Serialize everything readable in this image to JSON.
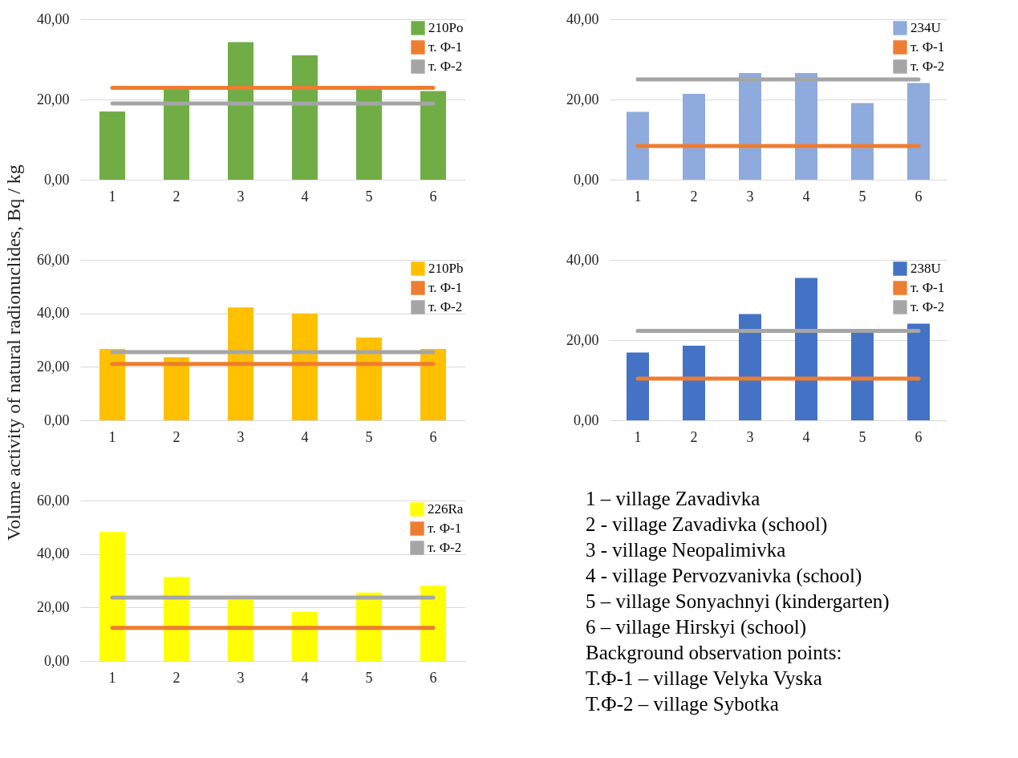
{
  "chart_data": [
    {
      "type": "bar",
      "categories": [
        "1",
        "2",
        "3",
        "4",
        "5",
        "6"
      ],
      "series": [
        {
          "name": "210Po",
          "color": "#70ad47",
          "values": [
            17.0,
            22.4,
            34.3,
            31.0,
            22.4,
            22.1
          ]
        },
        {
          "name": "т. Ф-1",
          "type": "line",
          "color": "#ed7d31",
          "values": [
            22.9,
            22.9,
            22.9,
            22.9,
            22.9,
            22.9
          ]
        },
        {
          "name": "т. Ф-2",
          "type": "line",
          "color": "#a5a5a5",
          "values": [
            19.0,
            19.0,
            19.0,
            19.0,
            19.0,
            19.0
          ]
        }
      ],
      "ylim": [
        0,
        40
      ],
      "yticks": [
        {
          "value": 0,
          "label": "0,00"
        },
        {
          "value": 20,
          "label": "20,00"
        },
        {
          "value": 40,
          "label": "40,00"
        }
      ],
      "grid": "y",
      "legend": "top right"
    },
    {
      "type": "bar",
      "categories": [
        "1",
        "2",
        "3",
        "4",
        "5",
        "6"
      ],
      "series": [
        {
          "name": "234U",
          "color": "#8faadc",
          "values": [
            16.9,
            21.4,
            26.6,
            26.6,
            19.1,
            24.1
          ]
        },
        {
          "name": "т. Ф-1",
          "type": "line",
          "color": "#ed7d31",
          "values": [
            8.4,
            8.4,
            8.4,
            8.4,
            8.4,
            8.4
          ]
        },
        {
          "name": "т. Ф-2",
          "type": "line",
          "color": "#a5a5a5",
          "values": [
            25.0,
            25.0,
            25.0,
            25.0,
            25.0,
            25.0
          ]
        }
      ],
      "ylim": [
        0,
        40
      ],
      "yticks": [
        {
          "value": 0,
          "label": "0,00"
        },
        {
          "value": 20,
          "label": "20,00"
        },
        {
          "value": 40,
          "label": "40,00"
        }
      ],
      "grid": "y",
      "legend": "top right"
    },
    {
      "type": "bar",
      "categories": [
        "1",
        "2",
        "3",
        "4",
        "5",
        "6"
      ],
      "ylabel": "Volume activity of natural radionuclides, Bq / kg",
      "series": [
        {
          "name": "210Pb",
          "color": "#ffc000",
          "values": [
            26.7,
            23.6,
            42.2,
            40.0,
            31.0,
            26.7
          ]
        },
        {
          "name": "т. Ф-1",
          "type": "line",
          "color": "#ed7d31",
          "values": [
            21.1,
            21.1,
            21.1,
            21.1,
            21.1,
            21.1
          ]
        },
        {
          "name": "т. Ф-2",
          "type": "line",
          "color": "#a5a5a5",
          "values": [
            25.5,
            25.5,
            25.5,
            25.5,
            25.5,
            25.5
          ]
        }
      ],
      "ylim": [
        0,
        60
      ],
      "yticks": [
        {
          "value": 0,
          "label": "0,00"
        },
        {
          "value": 20,
          "label": "20,00"
        },
        {
          "value": 40,
          "label": "40,00"
        },
        {
          "value": 60,
          "label": "60,00"
        }
      ],
      "grid": "y",
      "legend": "top right"
    },
    {
      "type": "bar",
      "categories": [
        "1",
        "2",
        "3",
        "4",
        "5",
        "6"
      ],
      "series": [
        {
          "name": "238U",
          "color": "#4472c4",
          "values": [
            16.9,
            18.6,
            26.5,
            35.5,
            22.0,
            24.1
          ]
        },
        {
          "name": "т. Ф-1",
          "type": "line",
          "color": "#ed7d31",
          "values": [
            10.4,
            10.4,
            10.4,
            10.4,
            10.4,
            10.4
          ]
        },
        {
          "name": "т. Ф-2",
          "type": "line",
          "color": "#a5a5a5",
          "values": [
            22.3,
            22.3,
            22.3,
            22.3,
            22.3,
            22.3
          ]
        }
      ],
      "ylim": [
        0,
        40
      ],
      "yticks": [
        {
          "value": 0,
          "label": "0,00"
        },
        {
          "value": 20,
          "label": "20,00"
        },
        {
          "value": 40,
          "label": "40,00"
        }
      ],
      "grid": "y",
      "legend": "top right"
    },
    {
      "type": "bar",
      "categories": [
        "1",
        "2",
        "3",
        "4",
        "5",
        "6"
      ],
      "series": [
        {
          "name": "226Ra",
          "color": "#ffff00",
          "values": [
            48.2,
            31.4,
            22.8,
            18.3,
            25.6,
            28.1
          ]
        },
        {
          "name": "т. Ф-1",
          "type": "line",
          "color": "#ed7d31",
          "values": [
            12.4,
            12.4,
            12.4,
            12.4,
            12.4,
            12.4
          ]
        },
        {
          "name": "т. Ф-2",
          "type": "line",
          "color": "#a5a5a5",
          "values": [
            23.7,
            23.7,
            23.7,
            23.7,
            23.7,
            23.7
          ]
        }
      ],
      "ylim": [
        0,
        60
      ],
      "yticks": [
        {
          "value": 0,
          "label": "0,00"
        },
        {
          "value": 20,
          "label": "20,00"
        },
        {
          "value": 40,
          "label": "40,00"
        },
        {
          "value": 60,
          "label": "60,00"
        }
      ],
      "grid": "y",
      "legend": "top right"
    },
    {
      "type": "other",
      "annotations": [
        "1 – village Zavadivka",
        "2 -  village Zavadivka (school)",
        "3 -  village Neopalimivka",
        "4 - village Pervozvanivka (school)",
        "5 – village Sonyachnyi (kindergarten)",
        "6 – village Hirskyi (school)",
        "Background observation points:",
        "Т.Ф-1 – village Velyka Vyska",
        "Т.Ф-2 – village Sybotka"
      ]
    }
  ]
}
